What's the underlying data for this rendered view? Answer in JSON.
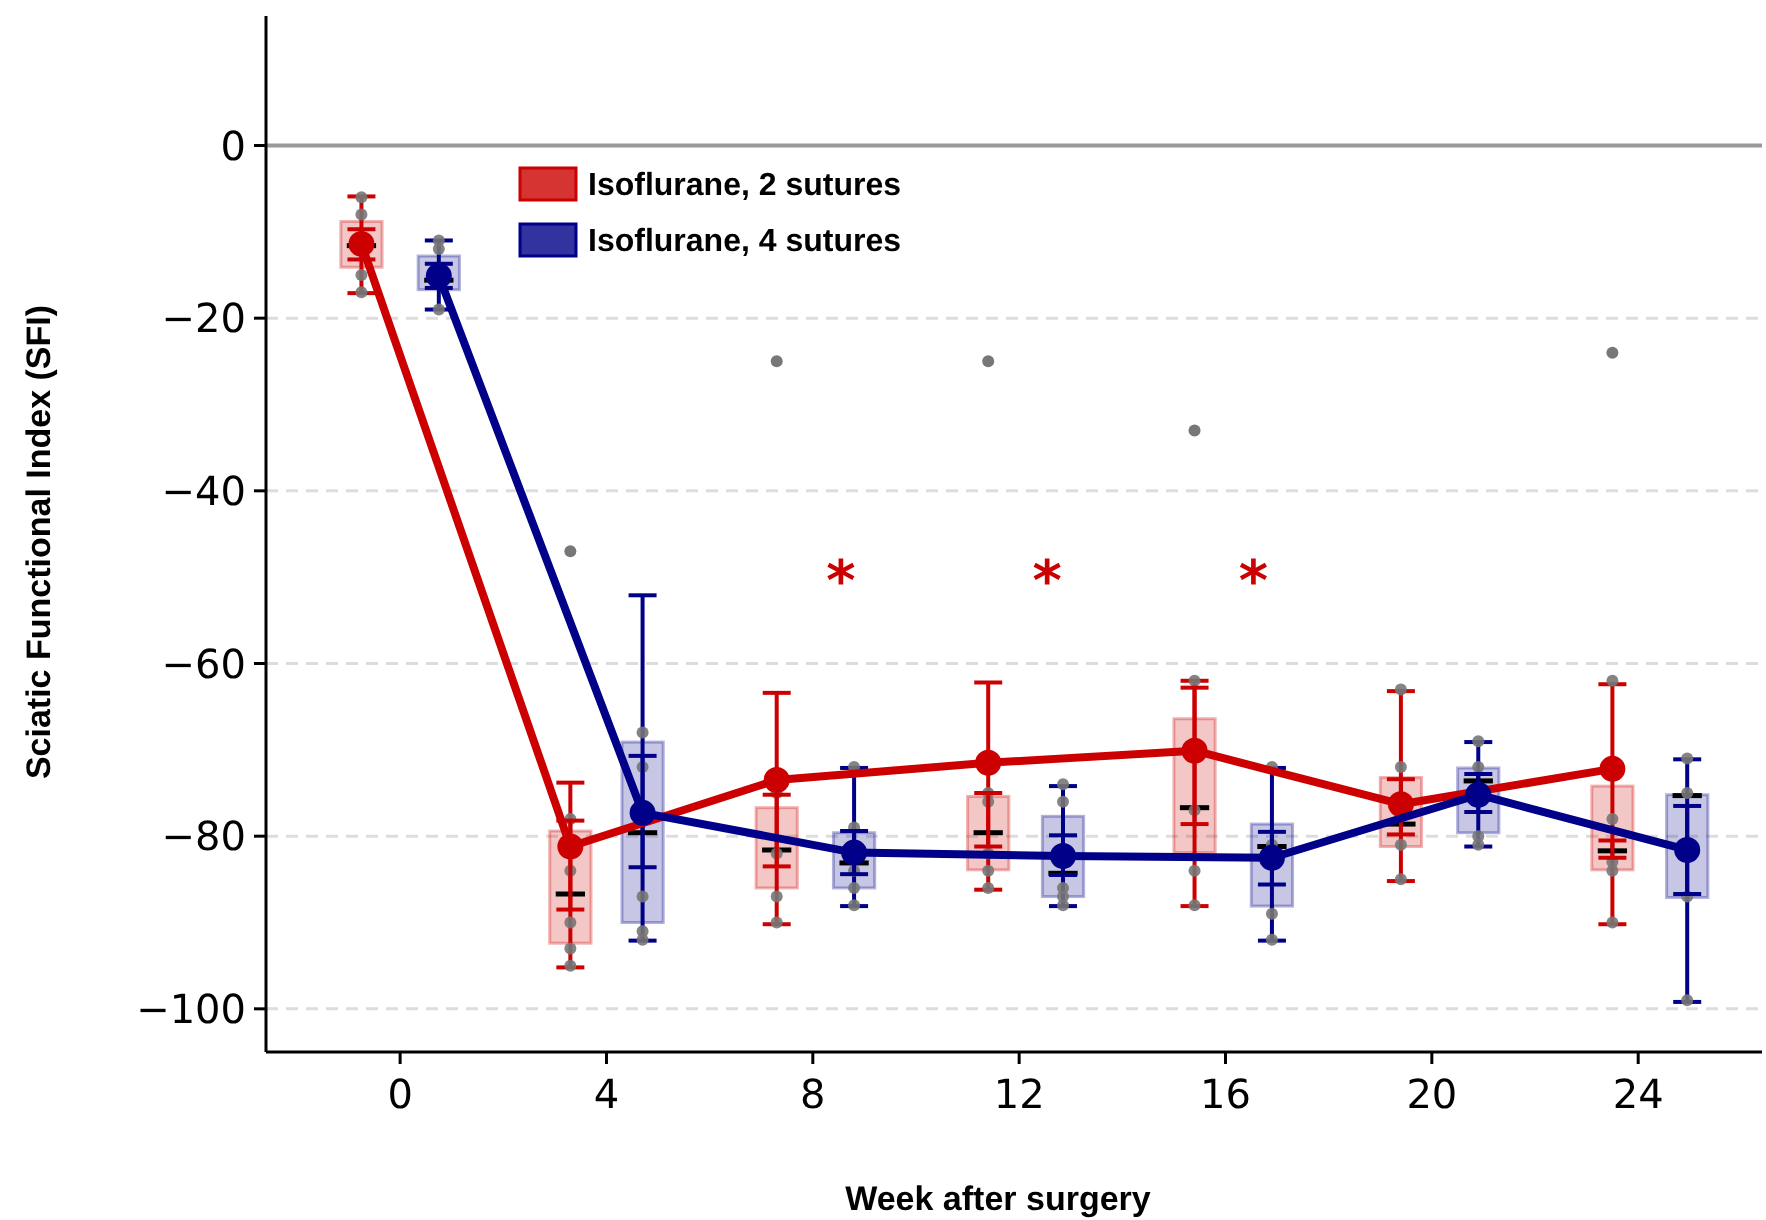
{
  "chart_data": {
    "type": "box",
    "xlabel": "Week after surgery",
    "ylabel": "Sciatic Functional Index (SFI)",
    "xlim": [
      -2.6,
      26.4
    ],
    "xticks": [
      0,
      4,
      8,
      12,
      16,
      20,
      24
    ],
    "ylim": [
      -105,
      15
    ],
    "yticks": [
      {
        "value": 0,
        "label": "0"
      },
      {
        "value": -20,
        "label": "−20"
      },
      {
        "value": -40,
        "label": "−40"
      },
      {
        "value": -60,
        "label": "−60"
      },
      {
        "value": -80,
        "label": "−80"
      },
      {
        "value": -100,
        "label": "−100"
      }
    ],
    "grid": "y",
    "legend": "top",
    "marker": "circle",
    "ref_lines": [
      {
        "axis": "y",
        "value": 0,
        "color": "#999999"
      }
    ],
    "annotations": [
      "*",
      "*",
      "*"
    ],
    "series": [
      {
        "name": "Isoflurane, 2 sutures",
        "color": "#cc0000",
        "x": [
          -0.75,
          3.3,
          7.3,
          11.4,
          15.4,
          19.4,
          23.5
        ],
        "boxes": [
          {
            "low": -17.1,
            "q1": -14.1,
            "median": -11.6,
            "q3": -8.8,
            "high": -5.9
          },
          {
            "low": -95.2,
            "q1": -92.4,
            "median": -86.7,
            "q3": -79.4,
            "high": -73.8,
            "outliers": [
              -47
            ]
          },
          {
            "low": -90.2,
            "q1": -86,
            "median": -81.6,
            "q3": -76.7,
            "high": -63.4,
            "outliers": [
              -25
            ]
          },
          {
            "low": -86.2,
            "q1": -83.9,
            "median": -79.6,
            "q3": -75.4,
            "high": -62.2,
            "outliers": [
              -25
            ]
          },
          {
            "low": -88.1,
            "q1": -81.9,
            "median": -76.7,
            "q3": -66.4,
            "high": -62,
            "outliers": [
              -33
            ]
          },
          {
            "low": -85.2,
            "q1": -81.2,
            "median": -78.6,
            "q3": -73.2,
            "high": -63.2
          },
          {
            "low": -90.2,
            "q1": -83.9,
            "median": -81.7,
            "q3": -74.2,
            "high": -62.4,
            "outliers": [
              -24
            ]
          }
        ]
      },
      {
        "name": "Isoflurane, 4 sutures",
        "color": "#000088",
        "x": [
          0.75,
          4.7,
          8.8,
          12.85,
          16.9,
          20.9,
          24.95
        ],
        "boxes": [
          {
            "low": -19,
            "q1": -16.7,
            "median": -15.6,
            "q3": -12.8,
            "high": -11
          },
          {
            "low": -92.1,
            "q1": -90,
            "median": -79.6,
            "q3": -69.1,
            "high": -52.1
          },
          {
            "low": -88.1,
            "q1": -86,
            "median": -83.1,
            "q3": -79.6,
            "high": -72.1
          },
          {
            "low": -88.1,
            "q1": -87,
            "median": -84.3,
            "q3": -77.7,
            "high": -74.2
          },
          {
            "low": -92.1,
            "q1": -88.1,
            "median": -81.2,
            "q3": -78.6,
            "high": -72.1
          },
          {
            "low": -81.2,
            "q1": -79.6,
            "median": -73.6,
            "q3": -72.1,
            "high": -69.1
          },
          {
            "low": -99.2,
            "q1": -87.1,
            "median": -75.3,
            "q3": -75.2,
            "high": -71.1
          }
        ]
      },
      {
        "type": "scatter",
        "color": "#777777",
        "x": [
          -0.75,
          -0.75,
          -0.75,
          -0.75,
          0.75,
          0.75,
          0.75,
          3.3,
          3.3,
          3.3,
          3.3,
          3.3,
          4.7,
          4.7,
          4.7,
          4.7,
          4.7,
          7.3,
          7.3,
          7.3,
          7.3,
          8.8,
          8.8,
          8.8,
          8.8,
          8.8,
          11.4,
          11.4,
          11.4,
          11.4,
          11.4,
          12.85,
          12.85,
          12.85,
          12.85,
          12.85,
          15.4,
          15.4,
          15.4,
          15.4,
          16.9,
          16.9,
          16.9,
          16.9,
          19.4,
          19.4,
          19.4,
          19.4,
          20.9,
          20.9,
          20.9,
          20.9,
          23.5,
          23.5,
          23.5,
          23.5,
          23.5,
          24.95,
          24.95,
          24.95,
          24.95
        ],
        "values": [
          -6,
          -8,
          -15,
          -17,
          -11,
          -12,
          -19,
          -78,
          -84,
          -90,
          -93,
          -95,
          -68,
          -72,
          -87,
          -91,
          -92,
          -75,
          -82,
          -87,
          -90,
          -72,
          -79,
          -84,
          -86,
          -88,
          -75,
          -76,
          -82,
          -84,
          -86,
          -74,
          -76,
          -86,
          -87,
          -88,
          -62,
          -77,
          -84,
          -88,
          -72,
          -81,
          -89,
          -92,
          -63,
          -72,
          -81,
          -85,
          -69,
          -72,
          -80,
          -81,
          -62,
          -78,
          -83,
          -84,
          -90,
          -71,
          -75,
          -87,
          -99
        ]
      },
      {
        "type": "line",
        "color": "#cc0000",
        "x": [
          -0.75,
          3.3,
          7.3,
          11.4,
          15.4,
          19.4,
          23.5
        ],
        "values": [
          -11.4,
          -81.2,
          -73.5,
          -71.5,
          -70.1,
          -76.3,
          -72.2
        ],
        "errors": [
          [
            -13.2,
            -9.7
          ],
          [
            -88.5,
            -78.2
          ],
          [
            -83.5,
            -75.2
          ],
          [
            -81.2,
            -75
          ],
          [
            -78.6,
            -62.8
          ],
          [
            -79.8,
            -73.4
          ],
          [
            -82.5,
            -80.5
          ]
        ]
      },
      {
        "type": "line",
        "color": "#000088",
        "x": [
          0.75,
          4.7,
          8.8,
          12.85,
          16.9,
          20.9,
          24.95
        ],
        "values": [
          -15.1,
          -77.3,
          -81.9,
          -82.3,
          -82.5,
          -75.2,
          -81.6
        ],
        "errors": [
          [
            -16.5,
            -13.7
          ],
          [
            -83.6,
            -70.7
          ],
          [
            -84.4,
            -79.4
          ],
          [
            -84.5,
            -79.9
          ],
          [
            -85.6,
            -79.5
          ],
          [
            -77.2,
            -72.8
          ],
          [
            -86.7,
            -76.5
          ]
        ]
      }
    ]
  }
}
